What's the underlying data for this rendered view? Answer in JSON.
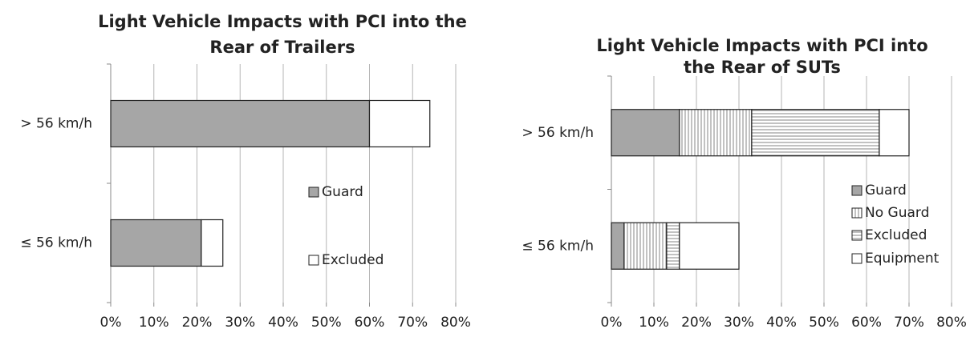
{
  "chart_data": [
    {
      "type": "bar",
      "orientation": "horizontal",
      "stacked": true,
      "title": [
        "Light Vehicle Impacts with PCI into the",
        "Rear of Trailers"
      ],
      "categories": [
        "> 56 km/h",
        "≤ 56 km/h"
      ],
      "series": [
        {
          "name": "Guard",
          "color": "#a6a6a6",
          "hatch": "none",
          "values": [
            60,
            21
          ]
        },
        {
          "name": "Excluded",
          "color": "#ffffff",
          "hatch": "none",
          "values": [
            14,
            5
          ]
        }
      ],
      "xlim": [
        0,
        80
      ],
      "xticks": [
        {
          "value": 0,
          "label": "0%"
        },
        {
          "value": 10,
          "label": "10%"
        },
        {
          "value": 20,
          "label": "20%"
        },
        {
          "value": 30,
          "label": "30%"
        },
        {
          "value": 40,
          "label": "40%"
        },
        {
          "value": 50,
          "label": "50%"
        },
        {
          "value": 60,
          "label": "60%"
        },
        {
          "value": 70,
          "label": "70%"
        },
        {
          "value": 80,
          "label": "80%"
        }
      ],
      "grid": true,
      "legend": "inside-right"
    },
    {
      "type": "bar",
      "orientation": "horizontal",
      "stacked": true,
      "title": [
        "Light Vehicle Impacts with PCI into",
        "the Rear of SUTs"
      ],
      "categories": [
        "> 56 km/h",
        "≤ 56 km/h"
      ],
      "series": [
        {
          "name": "Guard",
          "color": "#a6a6a6",
          "hatch": "none",
          "values": [
            16,
            3
          ]
        },
        {
          "name": "No Guard",
          "color": "#ffffff",
          "hatch": "vertical",
          "values": [
            17,
            10
          ]
        },
        {
          "name": "Excluded",
          "color": "#ffffff",
          "hatch": "horizontal",
          "values": [
            30,
            3
          ]
        },
        {
          "name": "Equipment",
          "color": "#ffffff",
          "hatch": "none",
          "values": [
            7,
            14
          ]
        }
      ],
      "xlim": [
        0,
        80
      ],
      "xticks": [
        {
          "value": 0,
          "label": "0%"
        },
        {
          "value": 10,
          "label": "10%"
        },
        {
          "value": 20,
          "label": "20%"
        },
        {
          "value": 30,
          "label": "30%"
        },
        {
          "value": 40,
          "label": "40%"
        },
        {
          "value": 50,
          "label": "50%"
        },
        {
          "value": 60,
          "label": "60%"
        },
        {
          "value": 70,
          "label": "70%"
        },
        {
          "value": 80,
          "label": "80%"
        }
      ],
      "grid": true,
      "legend": "right"
    }
  ]
}
